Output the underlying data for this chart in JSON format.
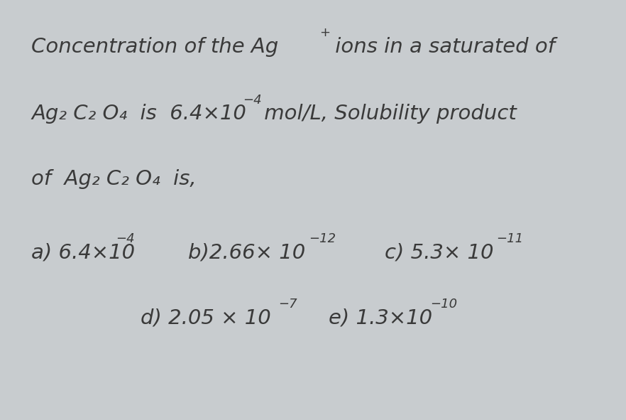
{
  "bg_color": "#c8cccf",
  "text_color": "#3a3a3a",
  "figsize": [
    8.82,
    5.91
  ],
  "dpi": 100,
  "line1_main": "Concentration of the Ag",
  "line1_sup": "+",
  "line1_rest": " ions in a saturated of",
  "line2_main": "Ag₂ C₂ O₄  is  6.4×10",
  "line2_sup": "−4",
  "line2_rest": " mol/L, Solubility product",
  "line3": "of  Ag₂ C₂ O₄  is,",
  "opt_a_main": "a) 6.4×10",
  "opt_a_sup": "−4",
  "opt_b_main": "b)2.66× 10",
  "opt_b_sup": "−12",
  "opt_c_main": "c) 5.3× 10",
  "opt_c_sup": "−11",
  "opt_d_main": "d) 2.05 × 10",
  "opt_d_sup": "−7",
  "opt_e_main": "e) 1.3×10",
  "opt_e_sup": "−10",
  "fs_main": 21,
  "fs_sup": 13
}
